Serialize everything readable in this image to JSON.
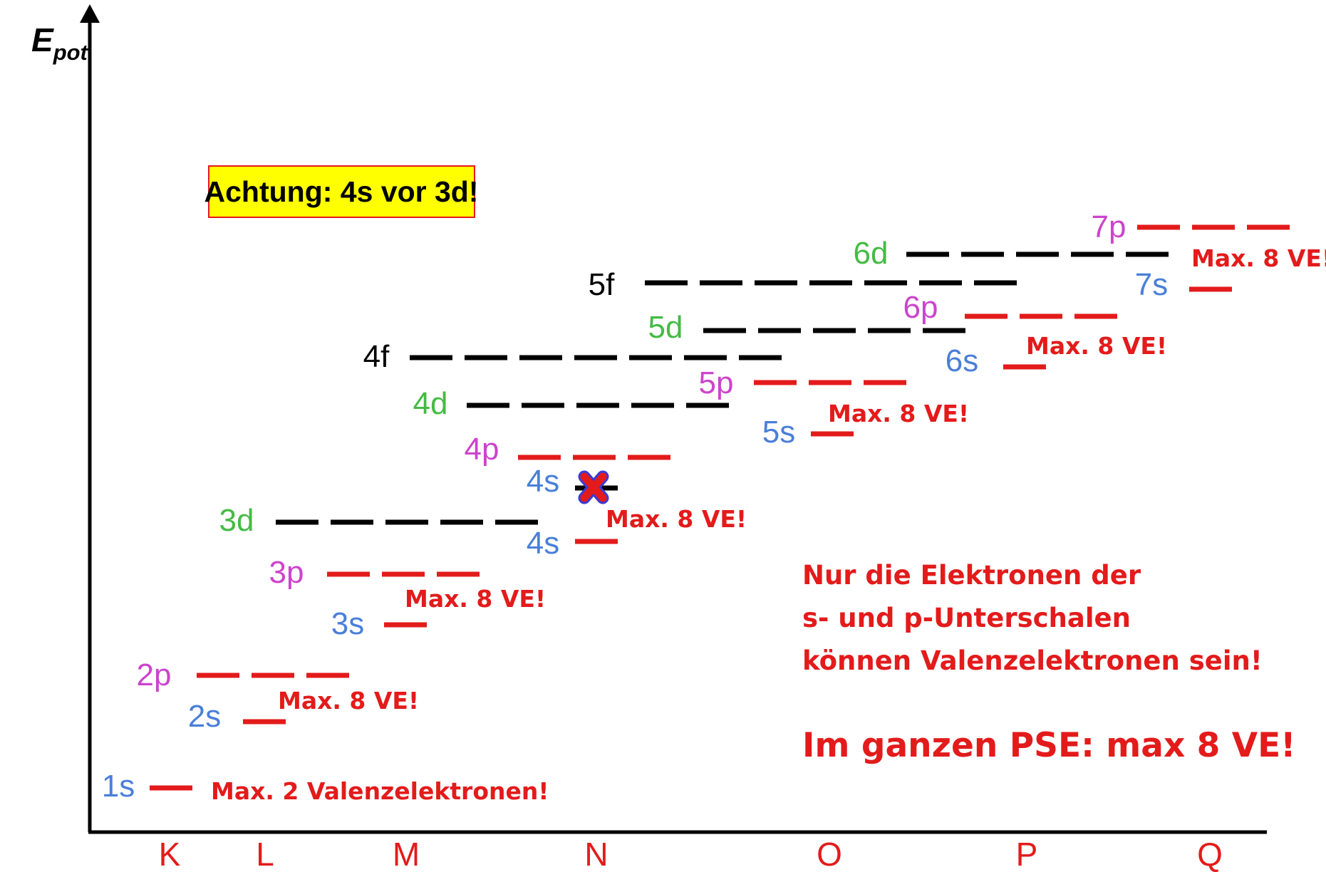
{
  "axis": {
    "y_label": "E",
    "y_label_sub": "pot",
    "shells": [
      "K",
      "L",
      "M",
      "N",
      "O",
      "P",
      "Q"
    ]
  },
  "warning": "Achtung: 4s vor 3d!",
  "orbitals": [
    {
      "name": "1s",
      "type": "s"
    },
    {
      "name": "2s",
      "type": "s"
    },
    {
      "name": "2p",
      "type": "p"
    },
    {
      "name": "3s",
      "type": "s"
    },
    {
      "name": "3p",
      "type": "p"
    },
    {
      "name": "3d",
      "type": "d"
    },
    {
      "name": "4s",
      "type": "s"
    },
    {
      "name": "4s",
      "type": "s",
      "crossed": true
    },
    {
      "name": "4p",
      "type": "p"
    },
    {
      "name": "4d",
      "type": "d"
    },
    {
      "name": "4f",
      "type": "f"
    },
    {
      "name": "5s",
      "type": "s"
    },
    {
      "name": "5p",
      "type": "p"
    },
    {
      "name": "5d",
      "type": "d"
    },
    {
      "name": "5f",
      "type": "f"
    },
    {
      "name": "6s",
      "type": "s"
    },
    {
      "name": "6p",
      "type": "p"
    },
    {
      "name": "6d",
      "type": "d"
    },
    {
      "name": "7s",
      "type": "s"
    },
    {
      "name": "7p",
      "type": "p"
    }
  ],
  "max_labels": [
    "Max. 2 Valenzelektronen!",
    "Max. 8 VE!",
    "Max. 8 VE!",
    "Max. 8 VE!",
    "Max. 8 VE!",
    "Max. 8 VE!",
    "Max. 8 VE!"
  ],
  "note": {
    "lines": [
      "Nur die Elektronen der",
      "s- und p-Unterschalen",
      "können Valenzelektronen sein!"
    ],
    "conclusion": "Im ganzen PSE: max 8 VE!"
  },
  "colors": {
    "s": "#4a7fd9",
    "p": "#cc44cc",
    "d": "#44bb44",
    "f": "#000000",
    "line_sp": "#e31b1b",
    "line_df": "#000000",
    "text_red": "#e31b1b",
    "warning_bg": "#ffff00",
    "warning_border": "#e31b1b",
    "cross": "#e31b1b",
    "cross_outline": "#3b3bd6"
  }
}
